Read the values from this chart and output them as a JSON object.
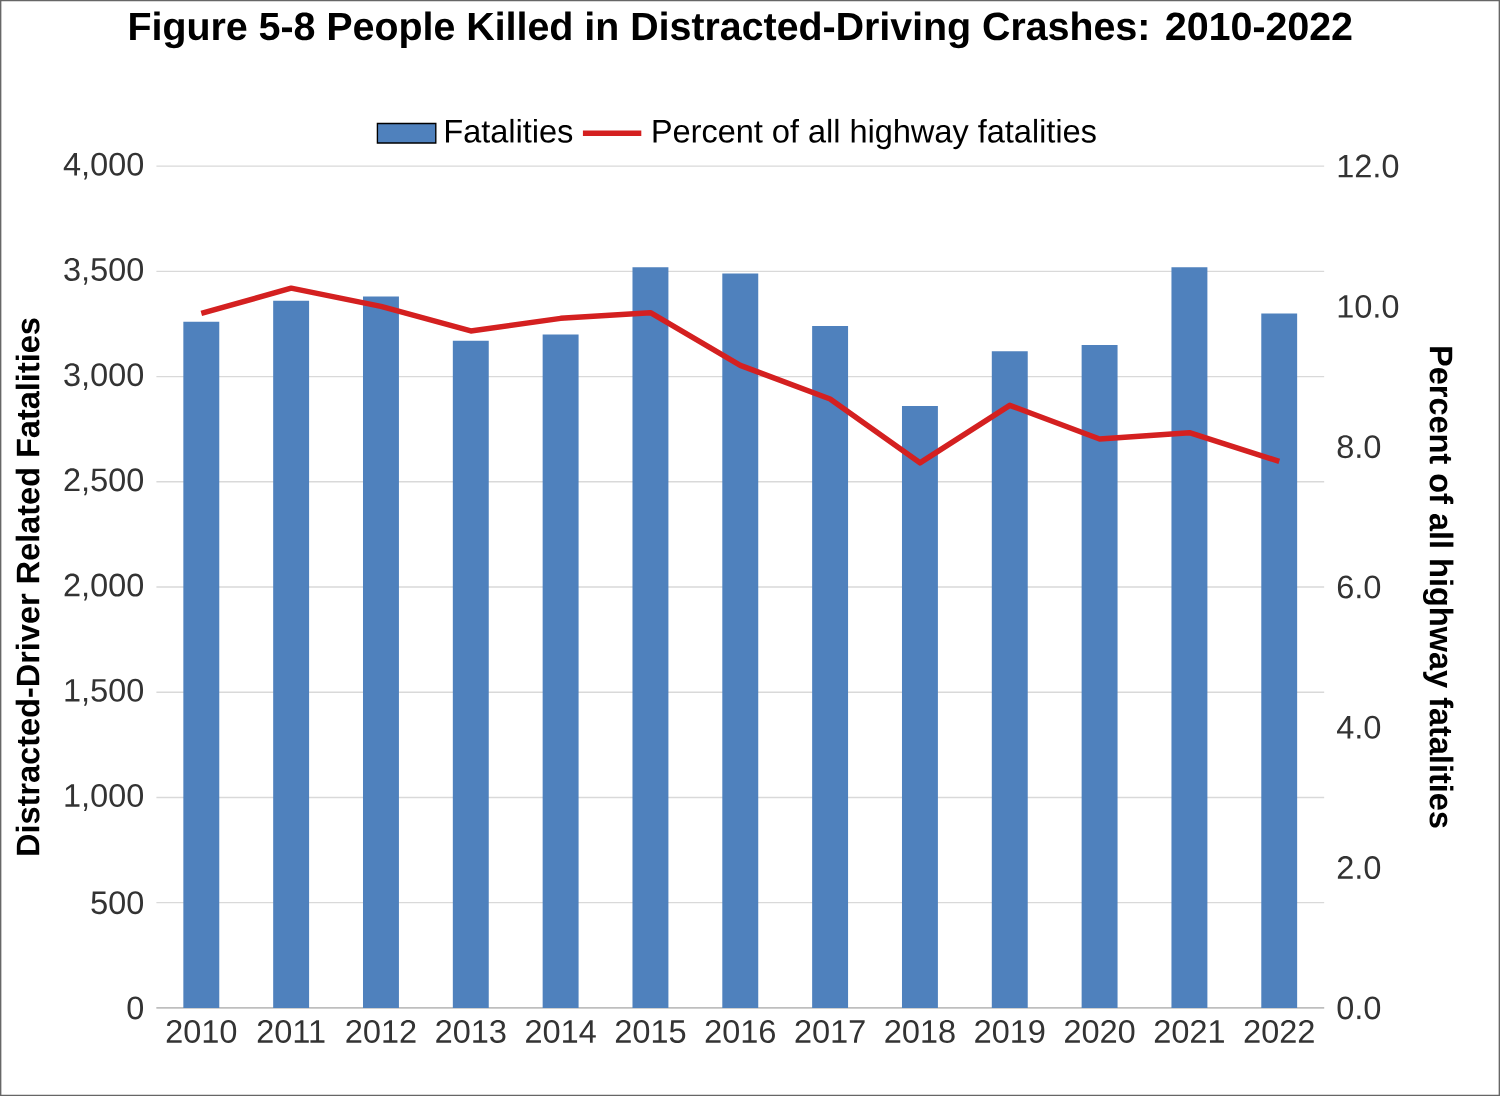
{
  "chart_data": {
    "type": "bar",
    "title": "Figure 5-8 People Killed in Distracted-Driving Crashes: 2010-2022",
    "categories": [
      "2010",
      "2011",
      "2012",
      "2013",
      "2014",
      "2015",
      "2016",
      "2017",
      "2018",
      "2019",
      "2020",
      "2021",
      "2022"
    ],
    "series": [
      {
        "name": "Fatalities",
        "color": "#4f81bd",
        "values": [
          3260,
          3360,
          3380,
          3170,
          3200,
          3520,
          3490,
          3240,
          2860,
          3120,
          3150,
          3520,
          3300
        ]
      },
      {
        "name": "Percent of all highway fatalities",
        "type": "line",
        "axis": "y2",
        "color": "#d42020",
        "values": [
          9.9,
          10.26,
          10.0,
          9.65,
          9.83,
          9.91,
          9.16,
          8.68,
          7.77,
          8.59,
          8.11,
          8.2,
          7.79
        ]
      }
    ],
    "ylabel": "Distracted-Driver Related Fatalities",
    "y2label": "Percent of all highway fatalities",
    "ylim": [
      0,
      4000
    ],
    "yticks": [
      {
        "value": 0,
        "label": "0"
      },
      {
        "value": 500,
        "label": "500"
      },
      {
        "value": 1000,
        "label": "1,000"
      },
      {
        "value": 1500,
        "label": "1,500"
      },
      {
        "value": 2000,
        "label": "2,000"
      },
      {
        "value": 2500,
        "label": "2,500"
      },
      {
        "value": 3000,
        "label": "3,000"
      },
      {
        "value": 3500,
        "label": "3,500"
      },
      {
        "value": 4000,
        "label": "4,000"
      }
    ],
    "y2lim": [
      0,
      12
    ],
    "y2ticks": [
      {
        "value": 0,
        "label": "0.0"
      },
      {
        "value": 2,
        "label": "2.0"
      },
      {
        "value": 4,
        "label": "4.0"
      },
      {
        "value": 6,
        "label": "6.0"
      },
      {
        "value": 8,
        "label": "8.0"
      },
      {
        "value": 10,
        "label": "10.0"
      },
      {
        "value": 12,
        "label": "12.0"
      }
    ],
    "grid": "y",
    "legend": "top",
    "marker": "none",
    "line_style": "solid"
  }
}
